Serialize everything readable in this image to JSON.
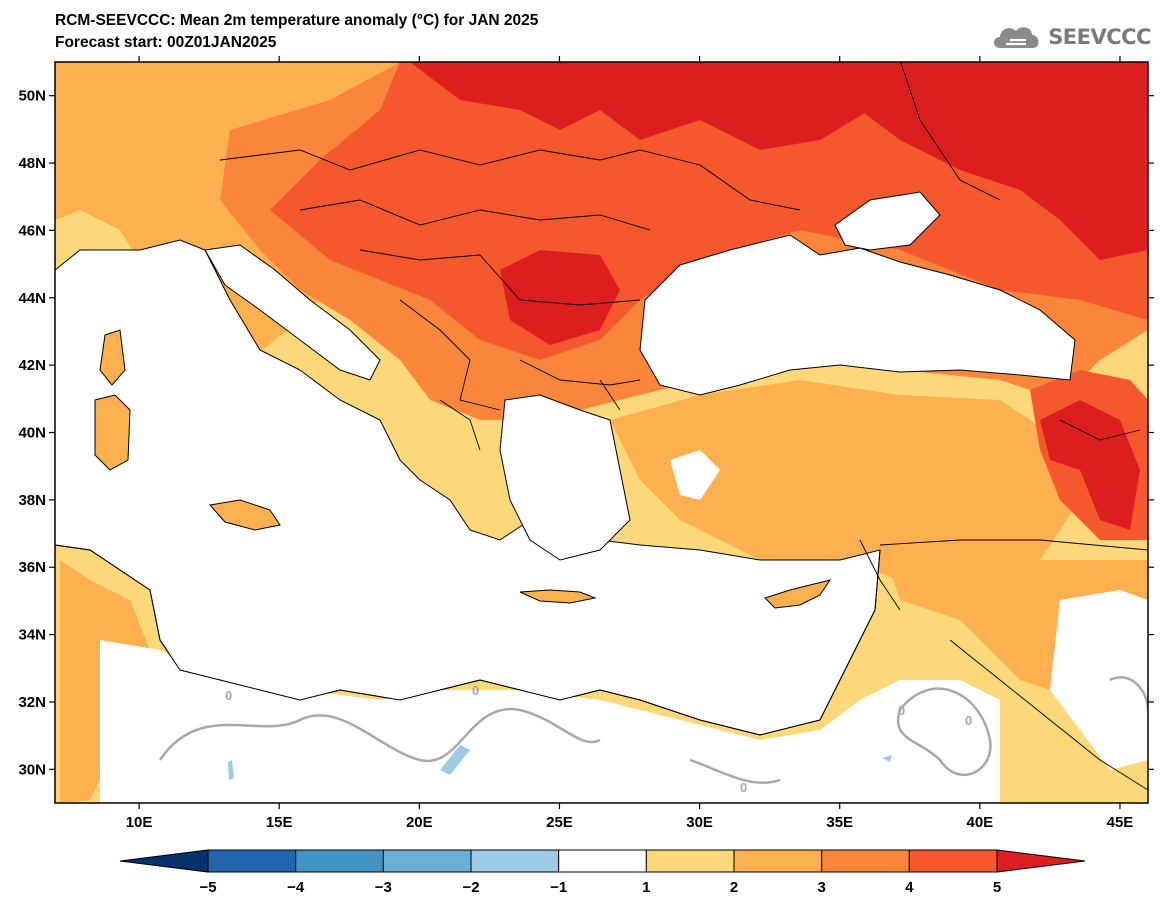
{
  "header": {
    "title": "RCM-SEEVCCC: Mean 2m temperature anomaly (°C) for JAN 2025",
    "subtitle": "Forecast start: 00Z01JAN2025",
    "logo_text": "SEEVCCC",
    "logo_icon": "cloud-icon"
  },
  "map": {
    "lon_range": [
      7,
      46
    ],
    "lat_range": [
      29,
      51
    ],
    "lat_ticks": [
      {
        "value": 50,
        "label": "50N"
      },
      {
        "value": 48,
        "label": "48N"
      },
      {
        "value": 46,
        "label": "46N"
      },
      {
        "value": 44,
        "label": "44N"
      },
      {
        "value": 42,
        "label": "42N"
      },
      {
        "value": 40,
        "label": "40N"
      },
      {
        "value": 38,
        "label": "38N"
      },
      {
        "value": 36,
        "label": "36N"
      },
      {
        "value": 34,
        "label": "34N"
      },
      {
        "value": 32,
        "label": "32N"
      },
      {
        "value": 30,
        "label": "30N"
      }
    ],
    "lon_ticks": [
      {
        "value": 10,
        "label": "10E"
      },
      {
        "value": 15,
        "label": "15E"
      },
      {
        "value": 20,
        "label": "20E"
      },
      {
        "value": 25,
        "label": "25E"
      },
      {
        "value": 30,
        "label": "30E"
      },
      {
        "value": 35,
        "label": "35E"
      },
      {
        "value": 40,
        "label": "40E"
      },
      {
        "value": 45,
        "label": "45E"
      }
    ],
    "contour_label": "0",
    "colors": {
      "bin_1_2": "#fdd87a",
      "bin_2_3": "#fcb04f",
      "bin_3_4": "#f9863a",
      "bin_4_5": "#f4582c",
      "bin_gt_5": "#dd1e1e",
      "neg_1_2": "#9dcbe6",
      "zero_contour": "#a8a8a8",
      "sea": "#ffffff"
    }
  },
  "colorbar": {
    "ticks": [
      "−5",
      "−4",
      "−3",
      "−2",
      "−1",
      "1",
      "2",
      "3",
      "4",
      "5"
    ],
    "colors": [
      "#08306b",
      "#2166ac",
      "#4393c3",
      "#6baed6",
      "#9dcbe6",
      "#ffffff",
      "#fdd87a",
      "#fcb04f",
      "#f9863a",
      "#f4582c",
      "#dd1e1e"
    ]
  }
}
